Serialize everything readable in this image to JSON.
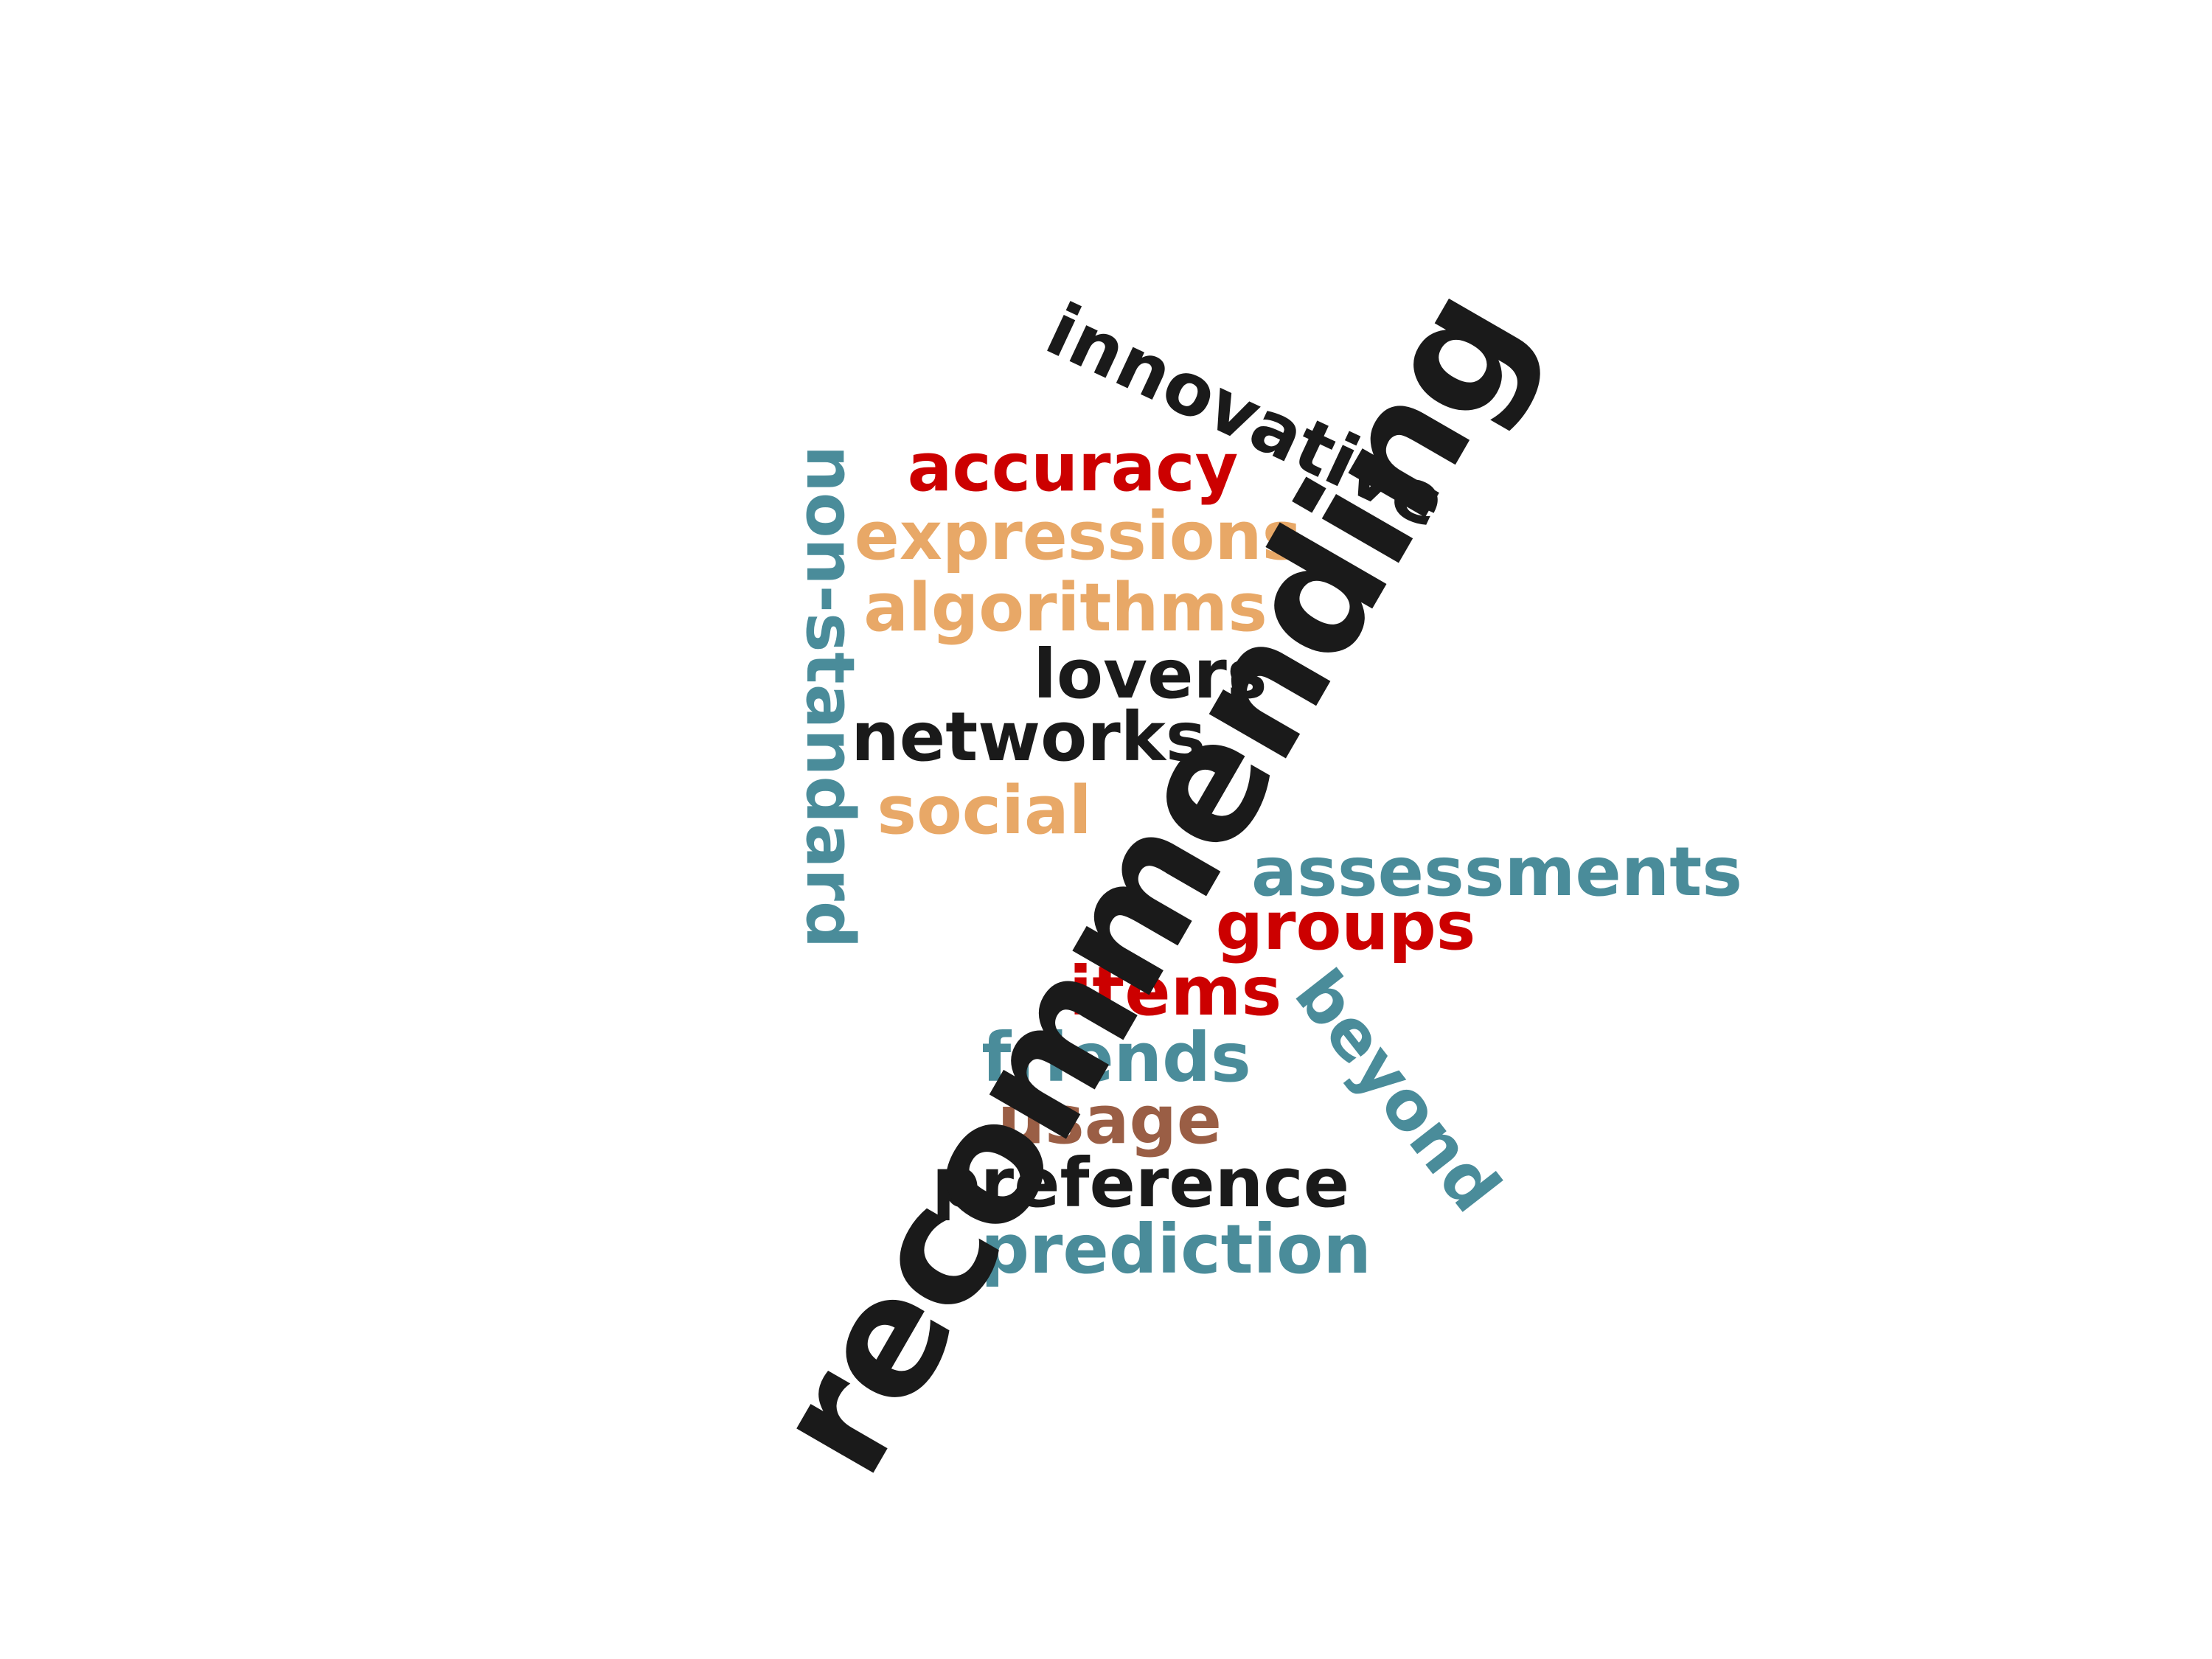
{
  "word_cloud": {
    "colors": {
      "black": "#1a1a1a",
      "red": "#cc0000",
      "orange": "#e8a867",
      "teal": "#4a8c9a",
      "brown": "#9a5e45"
    },
    "words": {
      "recommending": "recommending",
      "innovative": "innovative",
      "accuracy": "accuracy",
      "expressions": "expressions",
      "algorithms": "algorithms",
      "lovers": "lovers",
      "networks": "networks",
      "social": "social",
      "non_standard": "non-standard",
      "assessments": "assessments",
      "groups": "groups",
      "items": "items",
      "beyond": "beyond",
      "friends": "friends",
      "usage": "usage",
      "preference": "preference",
      "prediction": "prediction"
    }
  }
}
